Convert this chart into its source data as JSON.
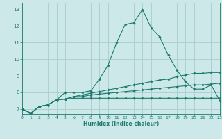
{
  "xlabel": "Humidex (Indice chaleur)",
  "bg_color": "#cce8e8",
  "grid_color": "#aacccc",
  "line_color": "#1a7a6e",
  "xlim": [
    0,
    23
  ],
  "ylim": [
    6.7,
    13.4
  ],
  "xticks": [
    0,
    1,
    2,
    3,
    4,
    5,
    6,
    7,
    8,
    9,
    10,
    11,
    12,
    13,
    14,
    15,
    16,
    17,
    18,
    19,
    20,
    21,
    22,
    23
  ],
  "yticks": [
    7,
    8,
    9,
    10,
    11,
    12,
    13
  ],
  "lines": [
    [
      7.0,
      6.75,
      7.15,
      7.25,
      7.55,
      8.0,
      8.0,
      8.0,
      8.1,
      8.8,
      9.65,
      11.0,
      12.1,
      12.2,
      13.0,
      11.9,
      11.35,
      10.25,
      9.35,
      8.65,
      8.2,
      8.2,
      8.45,
      7.5
    ],
    [
      7.0,
      6.75,
      7.15,
      7.25,
      7.55,
      7.6,
      7.75,
      7.85,
      7.95,
      8.05,
      8.15,
      8.25,
      8.35,
      8.45,
      8.55,
      8.65,
      8.75,
      8.8,
      8.95,
      9.05,
      9.15,
      9.15,
      9.2,
      9.2
    ],
    [
      7.0,
      6.75,
      7.15,
      7.25,
      7.55,
      7.6,
      7.65,
      7.65,
      7.65,
      7.65,
      7.65,
      7.65,
      7.65,
      7.65,
      7.65,
      7.65,
      7.65,
      7.65,
      7.65,
      7.65,
      7.65,
      7.65,
      7.65,
      7.65
    ],
    [
      7.0,
      6.75,
      7.15,
      7.25,
      7.55,
      7.6,
      7.75,
      7.75,
      7.85,
      7.9,
      7.95,
      8.0,
      8.05,
      8.1,
      8.15,
      8.2,
      8.25,
      8.3,
      8.35,
      8.4,
      8.45,
      8.45,
      8.5,
      8.55
    ]
  ]
}
